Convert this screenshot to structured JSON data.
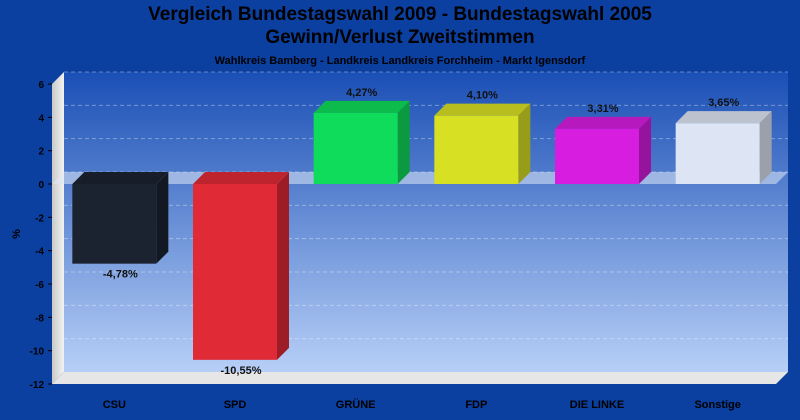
{
  "chart_data": {
    "type": "bar",
    "title": "Vergleich Bundestagswahl 2009 - Bundestagswahl 2005",
    "subtitle": "Gewinn/Verlust Zweitstimmen",
    "subtitle2": "Wahlkreis Bamberg - Landkreis Landkreis Forchheim - Markt Igensdorf",
    "ylabel": "%",
    "xlabel": "",
    "ylim": [
      -12,
      6
    ],
    "yticks": [
      -12,
      -10,
      -8,
      -6,
      -4,
      -2,
      0,
      2,
      4,
      6
    ],
    "grid": true,
    "categories": [
      "CSU",
      "SPD",
      "GRÜNE",
      "FDP",
      "DIE LINKE",
      "Sonstige"
    ],
    "values": [
      -4.78,
      -10.55,
      4.27,
      4.1,
      3.31,
      3.65
    ],
    "value_labels": [
      "-4,78%",
      "-10,55%",
      "4,27%",
      "4,10%",
      "3,31%",
      "3,65%"
    ],
    "colors": [
      "#1b2330",
      "#e02a36",
      "#0fdc5a",
      "#d8e023",
      "#d61de0",
      "#dde5f4"
    ]
  }
}
